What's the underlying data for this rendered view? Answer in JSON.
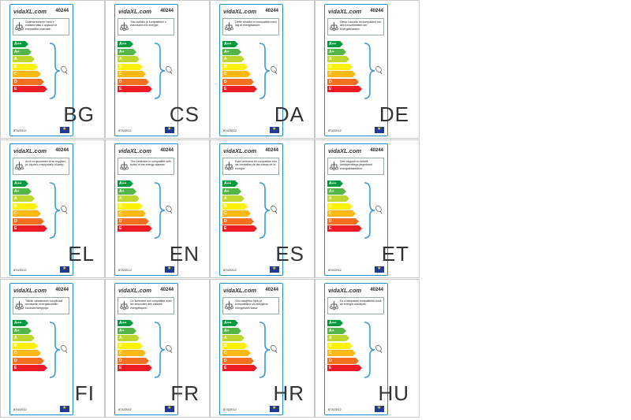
{
  "common": {
    "brand": "vidaXL.com",
    "model": "40244",
    "regulation": "874/2012",
    "classes": [
      "A++",
      "A+",
      "A",
      "B",
      "C",
      "D",
      "E"
    ],
    "class_colors": [
      "#009a3e",
      "#52b747",
      "#bed630",
      "#fff200",
      "#fdb913",
      "#f37021",
      "#ed1c24"
    ]
  },
  "cells": [
    {
      "code": "BG",
      "text": "Осветителното тяло е съвместимо с крушки от енергийни класове:"
    },
    {
      "code": "CS",
      "text": "Toto svítidlo je kompatibilní s žárovkami třid energie:"
    },
    {
      "code": "DA",
      "text": "Dette armatur er kompatibel med lag af energiklasser:"
    },
    {
      "code": "DE",
      "text": "Diese Leuchte ist kompatibel mit den Leuchtmitteln der Energieklassen:"
    },
    {
      "code": "EL",
      "text": "Αυτό το φωτιστικό είναι συμβατό με λάμπες ενεργειακής κλάσης:"
    },
    {
      "code": "EN",
      "text": "This luminaire is compatible with bulbs of the energy classes:"
    },
    {
      "code": "ES",
      "text": "Esta luminaria es compatible con las bombillas de las clases de la energía"
    },
    {
      "code": "ET",
      "text": "See valgusti on sobilik lambipirnidega järgmisest energiaklassidest:"
    },
    {
      "code": "FI",
      "text": "Tähän valaisimeen soveltuvat seuraaviin energialuokkiin kuuluvia lamppuja:"
    },
    {
      "code": "FR",
      "text": "Ce luminaire est compatible avec les ampoules des classes énergétiques:"
    },
    {
      "code": "HR",
      "text": "Ovo rasvjetno tijelo je kompatibilno sa žaruljama energetskih klasa"
    },
    {
      "code": "HU",
      "text": "Ez a lámpatest kompatibilis izzók az energia osztályok:"
    }
  ]
}
